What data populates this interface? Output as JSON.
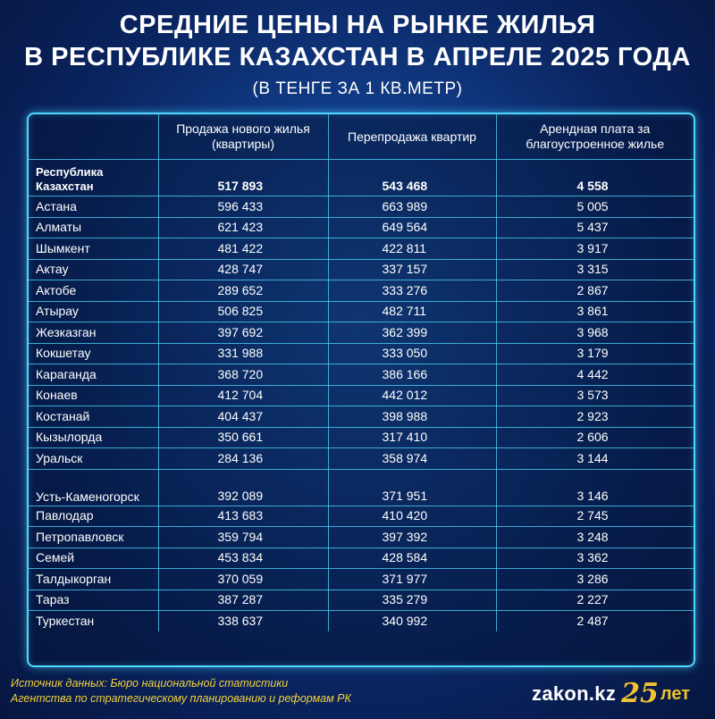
{
  "title": {
    "line1": "СРЕДНИЕ ЦЕНЫ НА РЫНКЕ ЖИЛЬЯ",
    "line2": "В РЕСПУБЛИКЕ КАЗАХСТАН В АПРЕЛЕ 2025 ГОДА",
    "subtitle": "(В ТЕНГЕ ЗА 1 КВ.МЕТР)"
  },
  "table": {
    "headers": [
      "",
      "Продажа нового жилья (квартиры)",
      "Перепродажа квартир",
      "Арендная плата за благоустроенное жилье"
    ],
    "rows": [
      [
        "Республика Казахстан",
        "517 893",
        "543 468",
        "4 558"
      ],
      [
        "Астана",
        "596 433",
        "663 989",
        "5 005"
      ],
      [
        "Алматы",
        "621 423",
        "649 564",
        "5 437"
      ],
      [
        "Шымкент",
        "481 422",
        "422 811",
        "3 917"
      ],
      [
        "Актау",
        "428 747",
        "337 157",
        "3 315"
      ],
      [
        "Актобе",
        "289 652",
        "333 276",
        "2 867"
      ],
      [
        "Атырау",
        "506 825",
        "482 711",
        "3 861"
      ],
      [
        "Жезказган",
        "397 692",
        "362 399",
        "3 968"
      ],
      [
        "Кокшетау",
        "331 988",
        "333 050",
        "3 179"
      ],
      [
        "Караганда",
        "368 720",
        "386 166",
        "4 442"
      ],
      [
        "Конаев",
        "412 704",
        "442 012",
        "3 573"
      ],
      [
        "Костанай",
        "404 437",
        "398 988",
        "2 923"
      ],
      [
        "Кызылорда",
        "350 661",
        "317 410",
        "2 606"
      ],
      [
        "Уральск",
        "284 136",
        "358 974",
        "3 144"
      ],
      [
        "Усть-Каменогорск",
        "392 089",
        "371 951",
        "3 146"
      ],
      [
        "Павлодар",
        "413 683",
        "410 420",
        "2 745"
      ],
      [
        "Петропавловск",
        "359 794",
        "397 392",
        "3 248"
      ],
      [
        "Семей",
        "453 834",
        "428 584",
        "3 362"
      ],
      [
        "Талдыкорган",
        "370 059",
        "371 977",
        "3 286"
      ],
      [
        "Тараз",
        "387 287",
        "335 279",
        "2 227"
      ],
      [
        "Туркестан",
        "338 637",
        "340 992",
        "2 487"
      ]
    ]
  },
  "footer": {
    "source_line1": "Источник данных: Бюро национальной статистики",
    "source_line2": "Агентства по стратегическому планированию и реформам РК",
    "logo_text": "zakon.kz",
    "logo_number": "25",
    "logo_suffix": "лет"
  },
  "colors": {
    "accent": "#4fd8ff",
    "footer_text": "#f2d13c",
    "logo_accent": "#f2c230"
  }
}
